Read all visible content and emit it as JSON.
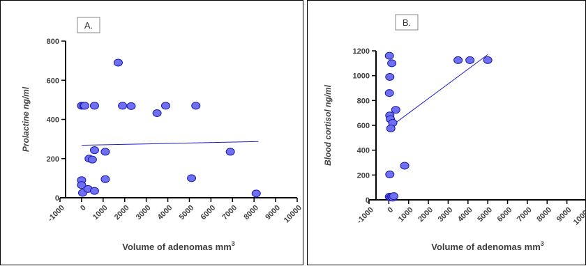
{
  "chart_data": [
    {
      "type": "scatter",
      "panel_label": "A.",
      "xlabel": "Volume of adenomas mm",
      "xlabel_sup": "3",
      "ylabel": "Prolactine ng/ml",
      "xlim": [
        -1000,
        10000
      ],
      "ylim": [
        0,
        800
      ],
      "xticks": [
        -1000,
        0,
        1000,
        2000,
        3000,
        4000,
        5000,
        6000,
        7000,
        8000,
        9000,
        10000
      ],
      "yticks": [
        0,
        200,
        400,
        600,
        800
      ],
      "grid": false,
      "points": [
        {
          "x": 0,
          "y": 470
        },
        {
          "x": 100,
          "y": 470
        },
        {
          "x": 150,
          "y": 470
        },
        {
          "x": 600,
          "y": 470
        },
        {
          "x": 1700,
          "y": 690
        },
        {
          "x": 1900,
          "y": 470
        },
        {
          "x": 2300,
          "y": 468
        },
        {
          "x": 3500,
          "y": 432
        },
        {
          "x": 3900,
          "y": 470
        },
        {
          "x": 5300,
          "y": 470
        },
        {
          "x": 6900,
          "y": 235
        },
        {
          "x": 5100,
          "y": 100
        },
        {
          "x": 8100,
          "y": 22
        },
        {
          "x": 0,
          "y": 90
        },
        {
          "x": 0,
          "y": 65
        },
        {
          "x": 50,
          "y": 25
        },
        {
          "x": 300,
          "y": 45
        },
        {
          "x": 350,
          "y": 200
        },
        {
          "x": 500,
          "y": 195
        },
        {
          "x": 600,
          "y": 243
        },
        {
          "x": 1100,
          "y": 235
        },
        {
          "x": 1100,
          "y": 95
        },
        {
          "x": 600,
          "y": 35
        }
      ],
      "trend": [
        {
          "x": 0,
          "y": 268
        },
        {
          "x": 8200,
          "y": 287
        }
      ]
    },
    {
      "type": "scatter",
      "panel_label": "B.",
      "xlabel": "Volume of adenomas mm",
      "xlabel_sup": "3",
      "ylabel": "Blood cortisol ng/ml",
      "xlim": [
        -1000,
        10000
      ],
      "ylim": [
        0,
        1200
      ],
      "xticks": [
        -1000,
        0,
        1000,
        2000,
        3000,
        4000,
        5000,
        6000,
        7000,
        8000,
        9000,
        10000
      ],
      "yticks": [
        0,
        200,
        400,
        600,
        800,
        1000,
        1200
      ],
      "grid": false,
      "points": [
        {
          "x": 30,
          "y": 1160
        },
        {
          "x": 150,
          "y": 1100
        },
        {
          "x": 50,
          "y": 990
        },
        {
          "x": 30,
          "y": 860
        },
        {
          "x": 350,
          "y": 725
        },
        {
          "x": 50,
          "y": 680
        },
        {
          "x": 80,
          "y": 650
        },
        {
          "x": 200,
          "y": 620
        },
        {
          "x": 100,
          "y": 575
        },
        {
          "x": 800,
          "y": 275
        },
        {
          "x": 50,
          "y": 205
        },
        {
          "x": 3500,
          "y": 1125
        },
        {
          "x": 4100,
          "y": 1125
        },
        {
          "x": 5000,
          "y": 1125
        },
        {
          "x": 30,
          "y": 25
        },
        {
          "x": 100,
          "y": 20
        },
        {
          "x": 150,
          "y": 25
        },
        {
          "x": 200,
          "y": 18
        },
        {
          "x": 250,
          "y": 30
        }
      ],
      "trend": [
        {
          "x": 0,
          "y": 580
        },
        {
          "x": 5000,
          "y": 1170
        }
      ]
    }
  ],
  "colors": {
    "point_fill": "#6f6ff2",
    "point_stroke": "#1a1aa8",
    "trend_line": "#1c1cc8",
    "axis": "#000000"
  }
}
